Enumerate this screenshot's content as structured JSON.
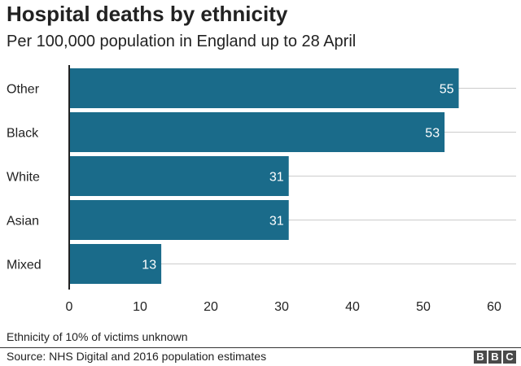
{
  "header": {
    "title": "Hospital deaths by ethnicity",
    "subtitle": "Per 100,000 population in England up to 28 April"
  },
  "footer": {
    "note": "Ethnicity of 10% of victims unknown",
    "source": "Source: NHS Digital and 2016 population estimates",
    "logo_letters": [
      "B",
      "B",
      "C"
    ]
  },
  "colors": {
    "bar": "#1a6b8a",
    "grid": "#cccccc",
    "axis": "#222222",
    "value_label": "#ffffff",
    "text": "#222222"
  },
  "chart_data": {
    "type": "bar",
    "orientation": "horizontal",
    "title": "Hospital deaths by ethnicity",
    "subtitle": "Per 100,000 population in England up to 28 April",
    "categories": [
      "Other",
      "Black",
      "White",
      "Asian",
      "Mixed"
    ],
    "values": [
      55,
      53,
      31,
      31,
      13
    ],
    "xlabel": "",
    "ylabel": "",
    "xlim": [
      0,
      60
    ],
    "xticks": [
      0,
      10,
      20,
      30,
      40,
      50,
      60
    ],
    "grid": "vertical",
    "legend": "none",
    "data_labels": true
  }
}
